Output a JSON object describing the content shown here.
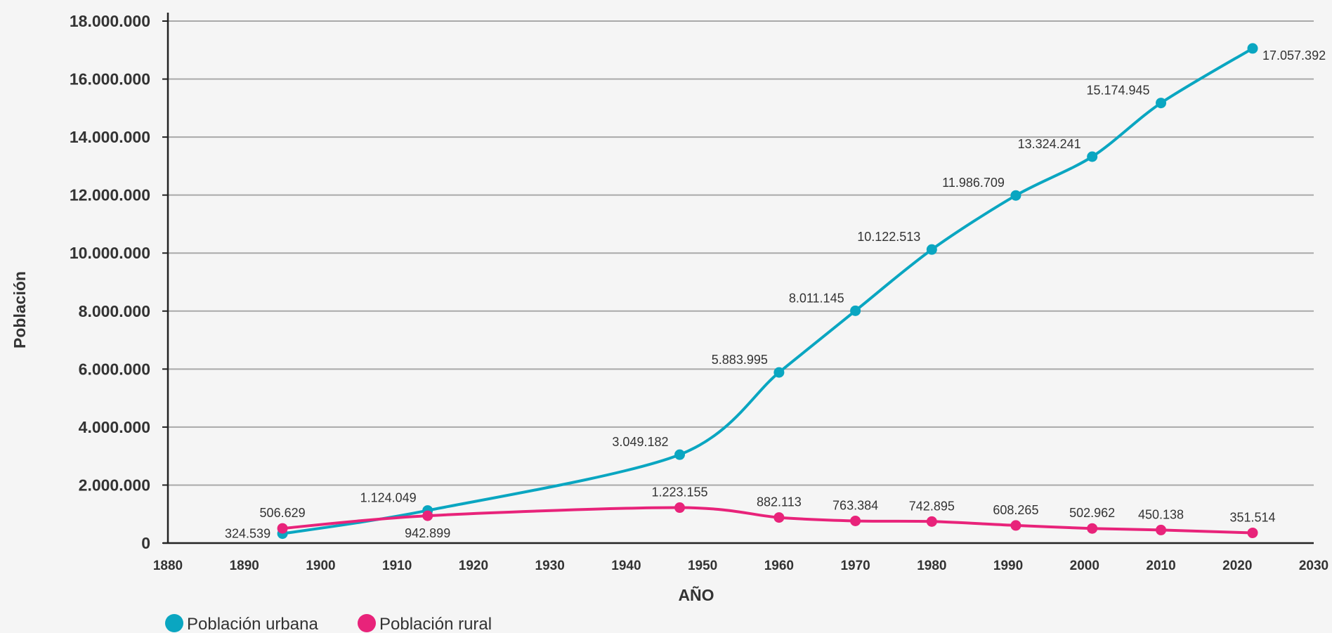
{
  "chart_data": {
    "type": "line",
    "xlabel": "AÑO",
    "ylabel": "Población",
    "xlim": [
      1880,
      2030
    ],
    "ylim": [
      0,
      18000000
    ],
    "x_ticks": [
      "1880",
      "1890",
      "1900",
      "1910",
      "1920",
      "1930",
      "1940",
      "1950",
      "1960",
      "1970",
      "1980",
      "1990",
      "2000",
      "2010",
      "2020",
      "2030"
    ],
    "y_ticks": [
      "0",
      "2.000.000",
      "4.000.000",
      "6.000.000",
      "8.000.000",
      "10.000.000",
      "12.000.000",
      "14.000.000",
      "16.000.000",
      "18.000.000"
    ],
    "grid": "horizontal",
    "legend_position": "bottom-left",
    "series": [
      {
        "name": "Población urbana",
        "color": "#0aa6c1",
        "x": [
          1895,
          1914,
          1947,
          1960,
          1970,
          1980,
          1991,
          2001,
          2010,
          2022
        ],
        "values": [
          324539,
          1124049,
          3049182,
          5883995,
          8011145,
          10122513,
          11986709,
          13324241,
          15174945,
          17057392
        ],
        "labels": [
          "324.539",
          "1.124.049",
          "3.049.182",
          "5.883.995",
          "8.011.145",
          "10.122.513",
          "11.986.709",
          "13.324.241",
          "15.174.945",
          "17.057.392"
        ]
      },
      {
        "name": "Población rural",
        "color": "#e8237a",
        "x": [
          1895,
          1914,
          1947,
          1960,
          1970,
          1980,
          1991,
          2001,
          2010,
          2022
        ],
        "values": [
          506629,
          942899,
          1223155,
          882113,
          763384,
          742895,
          608265,
          502962,
          450138,
          351514
        ],
        "labels": [
          "506.629",
          "942.899",
          "1.223.155",
          "882.113",
          "763.384",
          "742.895",
          "608.265",
          "502.962",
          "450.138",
          "351.514"
        ]
      }
    ]
  }
}
